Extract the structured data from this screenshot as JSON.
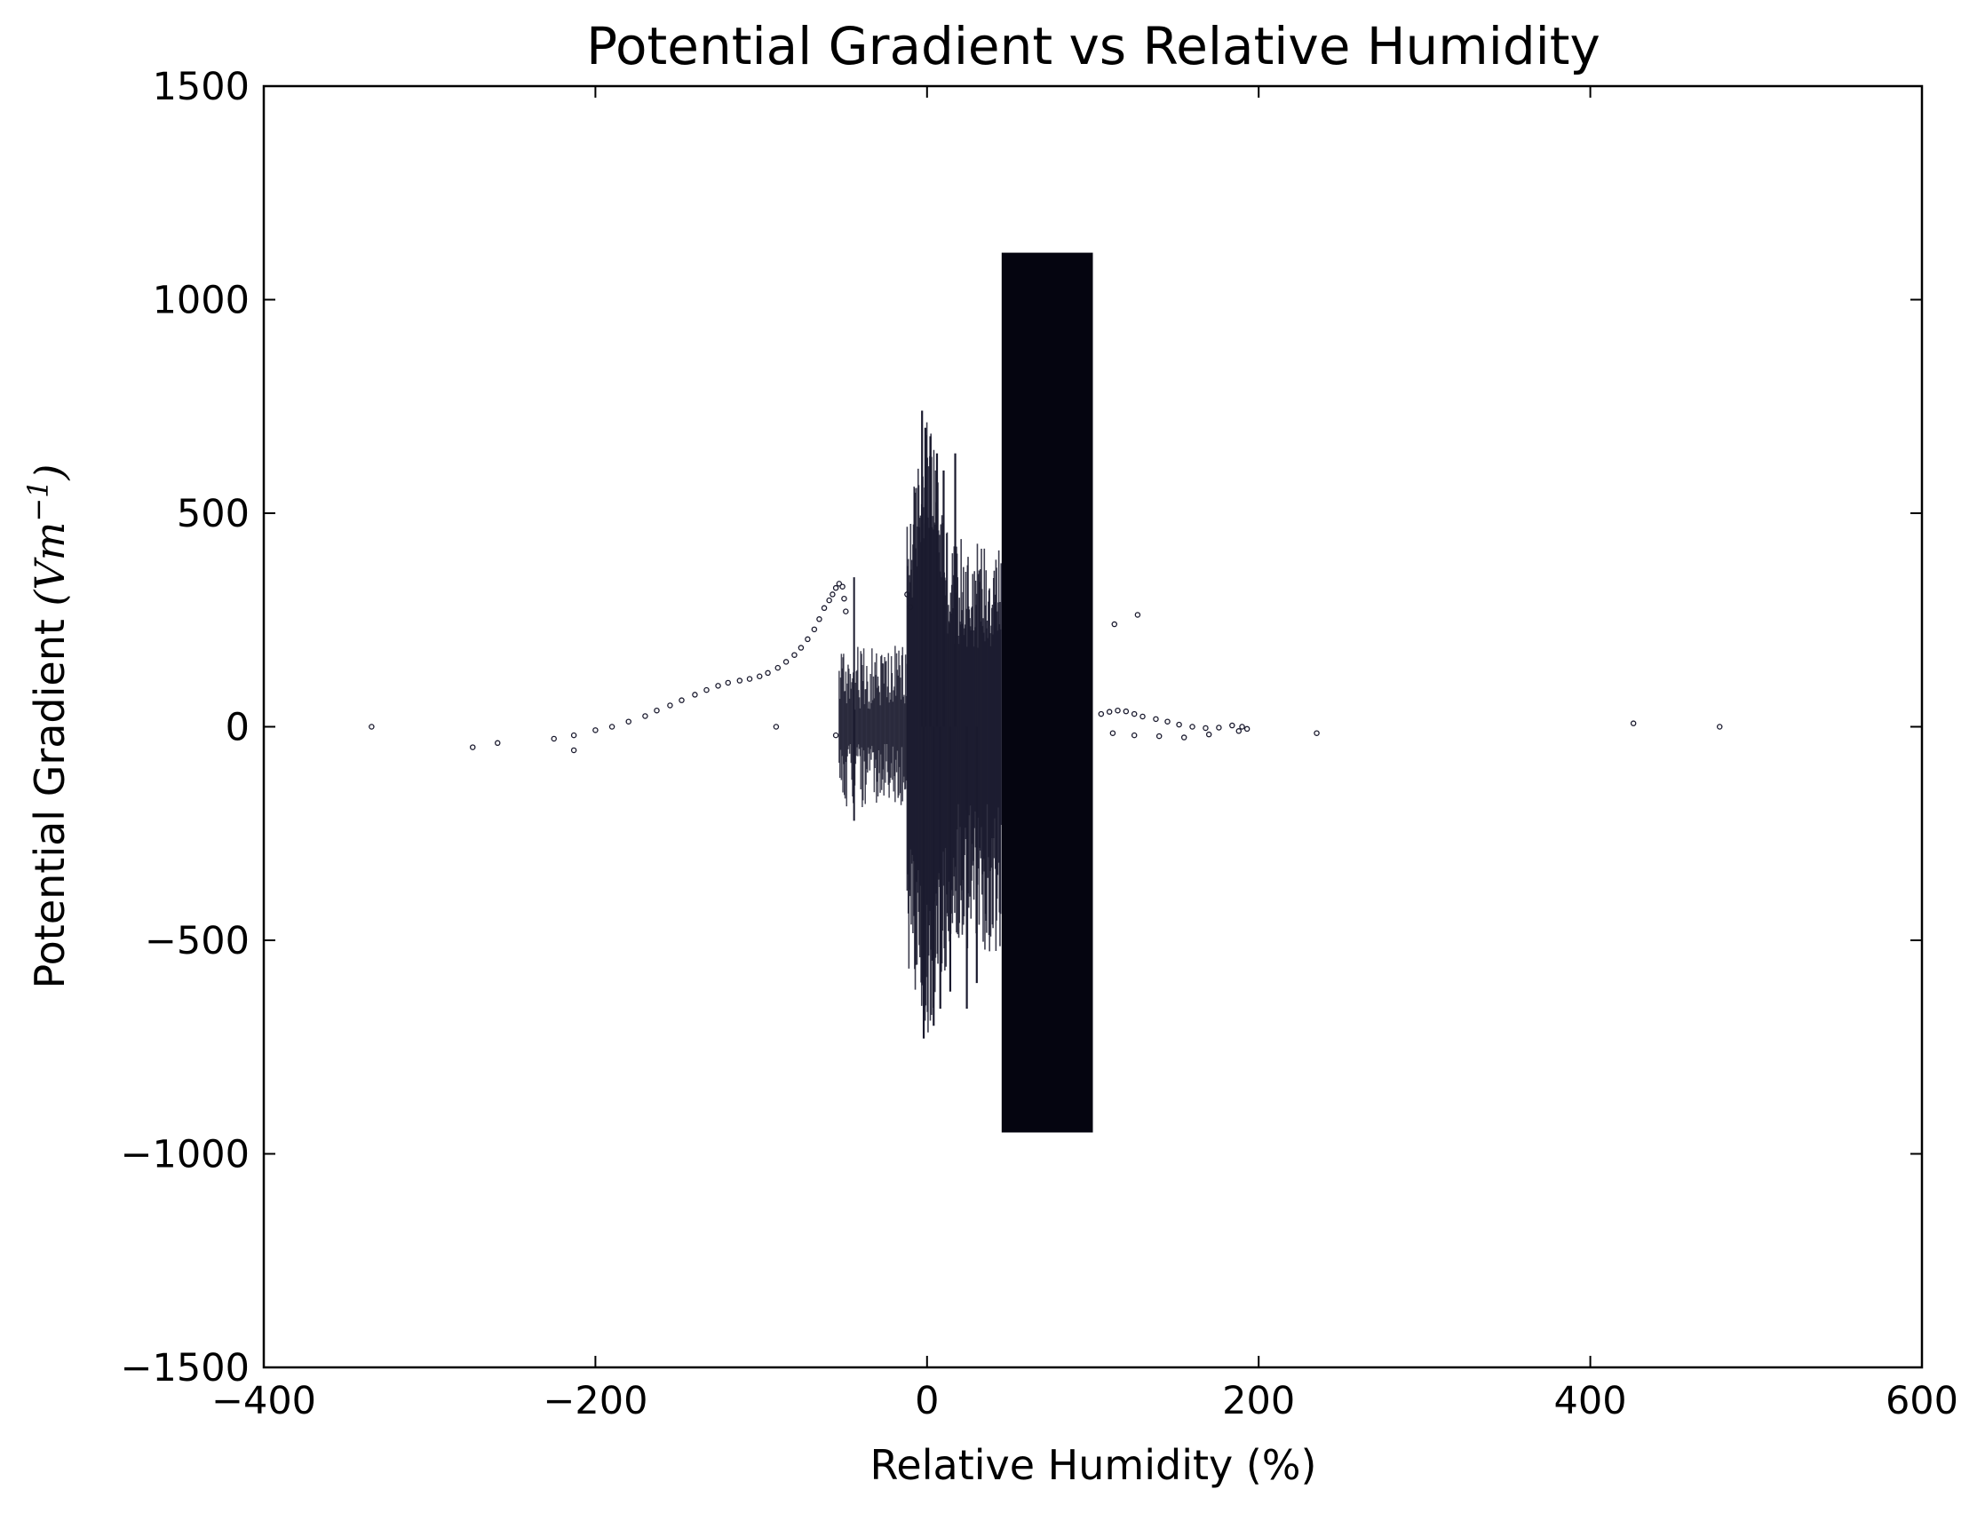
{
  "chart_data": {
    "type": "scatter",
    "title": "Potential Gradient vs Relative Humidity",
    "xlabel": "Relative Humidity (%)",
    "ylabel_text": "Potential Gradient ",
    "ylabel_unit": "(Vm",
    "ylabel_exp": "−1",
    "ylabel_close": ")",
    "xlim": [
      -400,
      600
    ],
    "ylim": [
      -1500,
      1500
    ],
    "xticks": [
      -400,
      -200,
      0,
      200,
      400,
      600
    ],
    "yticks": [
      -1500,
      -1000,
      -500,
      0,
      500,
      1000,
      1500
    ],
    "xtick_labels": [
      "−400",
      "−200",
      "0",
      "200",
      "400",
      "600"
    ],
    "ytick_labels": [
      "−1500",
      "−1000",
      "−500",
      "0",
      "500",
      "1000",
      "1500"
    ],
    "grid": false,
    "marker_color": "#1a1a2e",
    "dense_regions": [
      {
        "name": "saturated-block",
        "x": [
          45,
          100
        ],
        "y": [
          -950,
          1110
        ],
        "density": "very-high"
      },
      {
        "name": "mid-cluster",
        "x": [
          -12,
          45
        ],
        "y": [
          -730,
          740
        ],
        "density": "high"
      },
      {
        "name": "low-cluster",
        "x": [
          -53,
          -12
        ],
        "y": [
          -220,
          350
        ],
        "density": "medium"
      }
    ],
    "series": [
      {
        "points": [
          [
            -335,
            0
          ],
          [
            -274,
            -48
          ],
          [
            -259,
            -38
          ],
          [
            -225,
            -28
          ],
          [
            -213,
            -20
          ],
          [
            -213,
            -55
          ],
          [
            -200,
            -8
          ],
          [
            -190,
            0
          ],
          [
            -180,
            12
          ],
          [
            -170,
            25
          ],
          [
            -163,
            38
          ],
          [
            -155,
            50
          ],
          [
            -148,
            62
          ],
          [
            -140,
            75
          ],
          [
            -133,
            86
          ],
          [
            -126,
            96
          ],
          [
            -120,
            103
          ],
          [
            -113,
            108
          ],
          [
            -107,
            112
          ],
          [
            -101,
            118
          ],
          [
            -96,
            126
          ],
          [
            -90,
            138
          ],
          [
            -85,
            152
          ],
          [
            -80,
            168
          ],
          [
            -76,
            185
          ],
          [
            -72,
            205
          ],
          [
            -68,
            228
          ],
          [
            -65,
            252
          ],
          [
            -62,
            278
          ],
          [
            -59,
            296
          ],
          [
            -57,
            310
          ],
          [
            -55,
            325
          ],
          [
            -53,
            335
          ],
          [
            -51,
            328
          ],
          [
            -50,
            300
          ],
          [
            -49,
            270
          ],
          [
            -91,
            0
          ],
          [
            -55,
            -20
          ],
          [
            105,
            30
          ],
          [
            110,
            35
          ],
          [
            115,
            38
          ],
          [
            120,
            36
          ],
          [
            125,
            30
          ],
          [
            130,
            24
          ],
          [
            138,
            18
          ],
          [
            145,
            12
          ],
          [
            152,
            5
          ],
          [
            160,
            0
          ],
          [
            168,
            -3
          ],
          [
            176,
            -2
          ],
          [
            184,
            3
          ],
          [
            190,
            0
          ],
          [
            112,
            -15
          ],
          [
            125,
            -20
          ],
          [
            140,
            -22
          ],
          [
            155,
            -25
          ],
          [
            170,
            -18
          ],
          [
            188,
            -10
          ],
          [
            193,
            -5
          ],
          [
            113,
            240
          ],
          [
            127,
            262
          ],
          [
            -12,
            310
          ],
          [
            -10,
            280
          ],
          [
            235,
            -15
          ],
          [
            426,
            8
          ],
          [
            478,
            0
          ]
        ]
      }
    ]
  }
}
